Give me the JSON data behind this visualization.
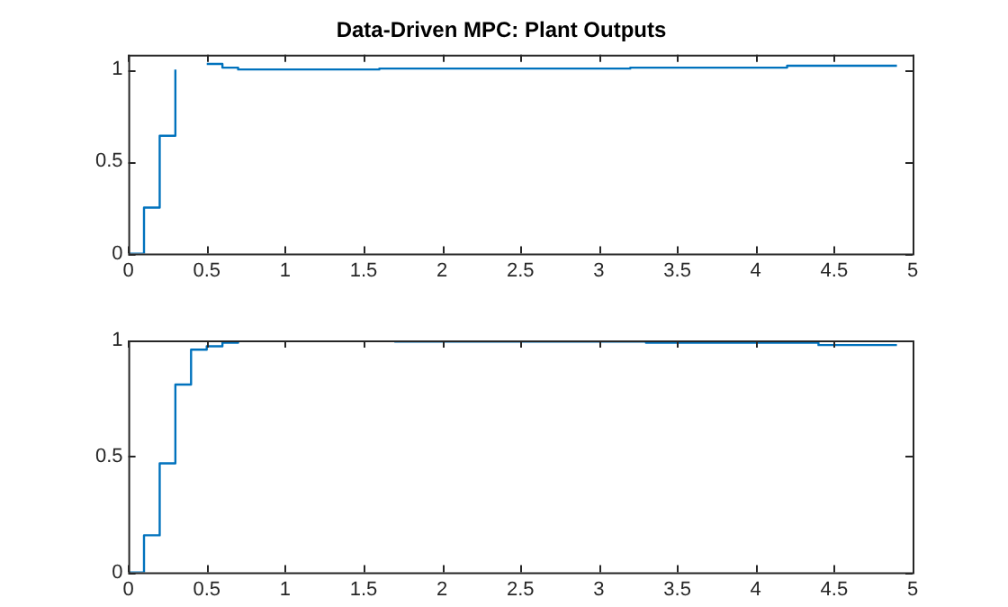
{
  "chart_data": [
    {
      "type": "step",
      "title": "Data-Driven MPC: Plant Outputs",
      "x": [
        0,
        0.1,
        0.2,
        0.3,
        0.4,
        0.5,
        0.6,
        0.7,
        1.6,
        3.2,
        4.2,
        4.9
      ],
      "series": [
        {
          "color": "#0072bd",
          "values": [
            0,
            0.25,
            0.64,
            1.0,
            null,
            1.03,
            1.01,
            1.0,
            1.005,
            1.01,
            1.02,
            1.02
          ]
        }
      ],
      "xlim": [
        0,
        5
      ],
      "xticks": [
        0,
        0.5,
        1,
        1.5,
        2,
        2.5,
        3,
        3.5,
        4,
        4.5,
        5
      ],
      "ylim": [
        0,
        1.08
      ],
      "yticks": [
        0,
        0.5,
        1
      ],
      "grid": false,
      "legend": false
    },
    {
      "type": "step",
      "x": [
        0,
        0.1,
        0.2,
        0.3,
        0.4,
        0.5,
        0.6,
        0.7,
        1.7,
        3.3,
        4.4,
        4.9
      ],
      "series": [
        {
          "color": "#0072bd",
          "values": [
            0,
            0.16,
            0.47,
            0.81,
            0.96,
            0.975,
            0.99,
            1.0,
            0.995,
            0.99,
            0.98,
            0.98
          ]
        }
      ],
      "xlim": [
        0,
        5
      ],
      "xticks": [
        0,
        0.5,
        1,
        1.5,
        2,
        2.5,
        3,
        3.5,
        4,
        4.5,
        5
      ],
      "ylim": [
        0,
        1
      ],
      "yticks": [
        0,
        0.5,
        1
      ],
      "grid": false,
      "legend": false
    }
  ]
}
